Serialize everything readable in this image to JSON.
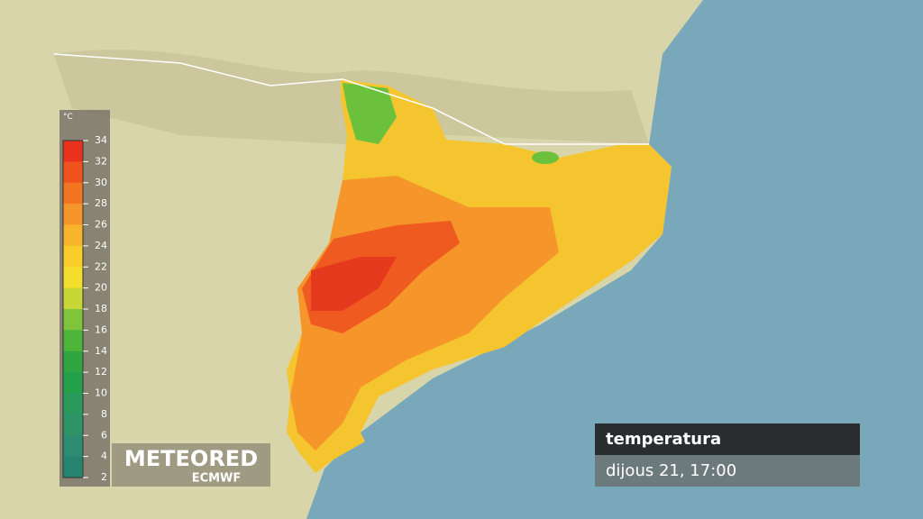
{
  "legend": {
    "unit": "°C",
    "ticks": [
      34,
      32,
      30,
      28,
      26,
      24,
      22,
      20,
      18,
      16,
      14,
      12,
      10,
      8,
      6,
      4,
      2
    ],
    "colors": [
      "#e8321e",
      "#f0521e",
      "#f3751f",
      "#f6952a",
      "#f8b52c",
      "#f9cd2a",
      "#f4de2d",
      "#c8d637",
      "#7fc43b",
      "#4cb53a",
      "#2fa63f",
      "#22a04a",
      "#2a9a5c",
      "#2e9468",
      "#2d8c70",
      "#268470"
    ]
  },
  "logo": {
    "brand": "METEORED",
    "source": "ECMWF"
  },
  "info": {
    "variable": "temperatura",
    "time": "dijous 21, 17:00"
  }
}
